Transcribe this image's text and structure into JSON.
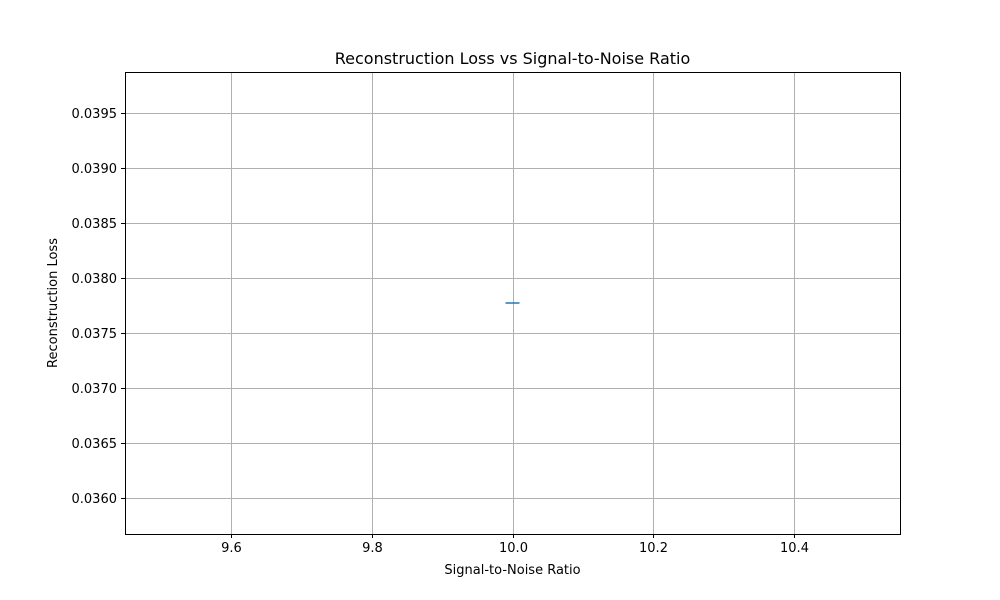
{
  "chart_data": {
    "type": "line",
    "title": "Reconstruction Loss vs Signal-to-Noise Ratio",
    "xlabel": "Signal-to-Noise Ratio",
    "ylabel": "Reconstruction Loss",
    "xlim": [
      9.45,
      10.55
    ],
    "ylim": [
      0.03567,
      0.03987
    ],
    "xticks": [
      "9.6",
      "9.8",
      "10.0",
      "10.2",
      "10.4"
    ],
    "xtick_values": [
      9.6,
      9.8,
      10.0,
      10.2,
      10.4
    ],
    "yticks": [
      "0.0360",
      "0.0365",
      "0.0370",
      "0.0375",
      "0.0380",
      "0.0385",
      "0.0390",
      "0.0395"
    ],
    "ytick_values": [
      0.036,
      0.0365,
      0.037,
      0.0375,
      0.038,
      0.0385,
      0.039,
      0.0395
    ],
    "grid": true,
    "series": [
      {
        "x": [
          10.0
        ],
        "y": [
          0.03777
        ],
        "color": "#1f77b4",
        "marker": "hline"
      }
    ]
  }
}
